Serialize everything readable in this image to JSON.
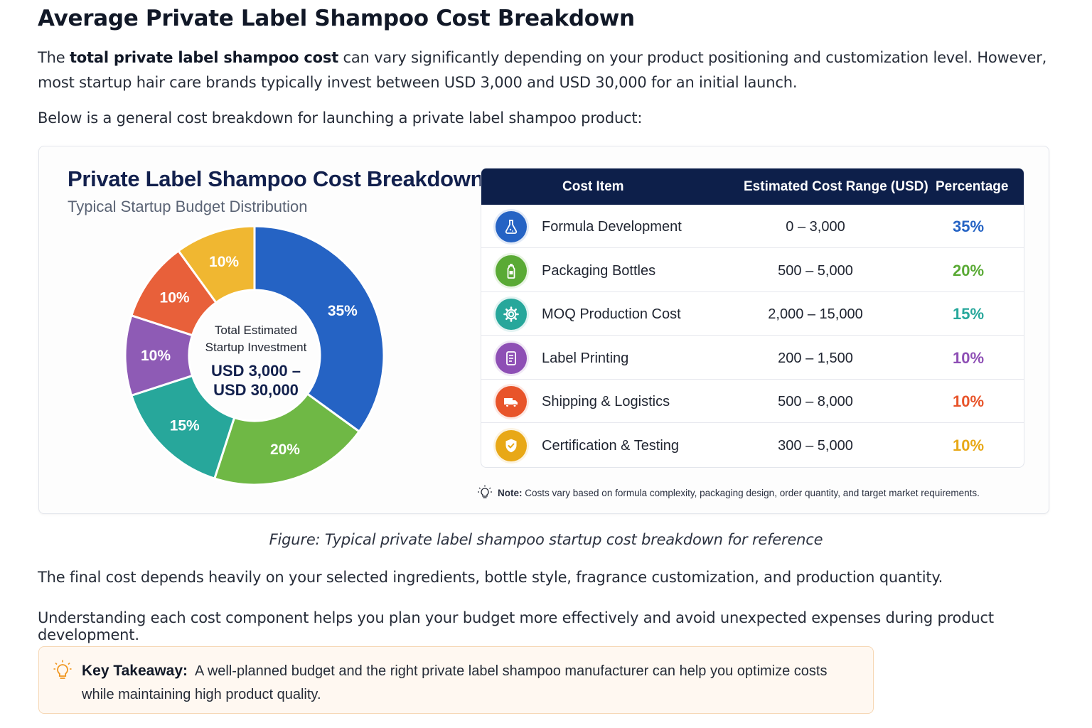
{
  "article": {
    "heading": "Average Private Label Shampoo Cost Breakdown",
    "intro_pre": "The ",
    "intro_bold": "total private label shampoo cost",
    "intro_post": " can vary significantly depending on your product positioning and customization level. However, most startup hair care brands typically invest between USD 3,000 and USD 30,000 for an initial launch.",
    "below": "Below is a general cost breakdown for launching a private label shampoo product:",
    "caption": "Figure: Typical private label shampoo startup cost breakdown for reference",
    "para1": "The final cost depends heavily on your selected ingredients, bottle style, fragrance customization, and production quantity.",
    "para2": "Understanding each cost component helps you plan your budget more effectively and avoid unexpected expenses during product development.",
    "takeaway_label": "Key Takeaway:",
    "takeaway_text": "A well-planned budget and the right private label shampoo manufacturer can help you optimize costs while maintaining high product quality."
  },
  "chart_data": {
    "type": "pie",
    "title": "Private Label Shampoo Cost Breakdown",
    "subtitle": "Typical Startup Budget Distribution",
    "center_label_line1": "Total Estimated",
    "center_label_line2": "Startup Investment",
    "center_value_line1": "USD 3,000 –",
    "center_value_line2": "USD 30,000",
    "categories": [
      "Formula Development",
      "Packaging Bottles",
      "MOQ Production Cost",
      "Label Printing",
      "Shipping & Logistics",
      "Certification & Testing"
    ],
    "values": [
      35,
      20,
      15,
      10,
      10,
      10
    ],
    "labels": [
      "35%",
      "20%",
      "15%",
      "10%",
      "10%",
      "10%"
    ],
    "colors": [
      "#2563c4",
      "#6fb845",
      "#27a79b",
      "#8e5bb5",
      "#e8603a",
      "#f0b731"
    ],
    "donut": true
  },
  "table": {
    "headers": [
      "Cost Item",
      "Estimated Cost Range (USD)",
      "Percentage"
    ],
    "rows": [
      {
        "name": "Formula Development",
        "range": "0 – 3,000",
        "pct": "35%",
        "icon": "flask-icon",
        "color": "#2563c4"
      },
      {
        "name": "Packaging Bottles",
        "range": "500 – 5,000",
        "pct": "20%",
        "icon": "bottle-icon",
        "color": "#5aaa35"
      },
      {
        "name": "MOQ Production Cost",
        "range": "2,000 – 15,000",
        "pct": "15%",
        "icon": "gear-icon",
        "color": "#27a79b"
      },
      {
        "name": "Label Printing",
        "range": "200 – 1,500",
        "pct": "10%",
        "icon": "label-icon",
        "color": "#8e4fb5"
      },
      {
        "name": "Shipping & Logistics",
        "range": "500 – 8,000",
        "pct": "10%",
        "icon": "truck-icon",
        "color": "#e8542a"
      },
      {
        "name": "Certification & Testing",
        "range": "300 – 5,000",
        "pct": "10%",
        "icon": "shield-check-icon",
        "color": "#e8a817"
      }
    ],
    "note_label": "Note:",
    "note_text": "Costs vary based on formula complexity, packaging design, order quantity, and target market requirements."
  }
}
